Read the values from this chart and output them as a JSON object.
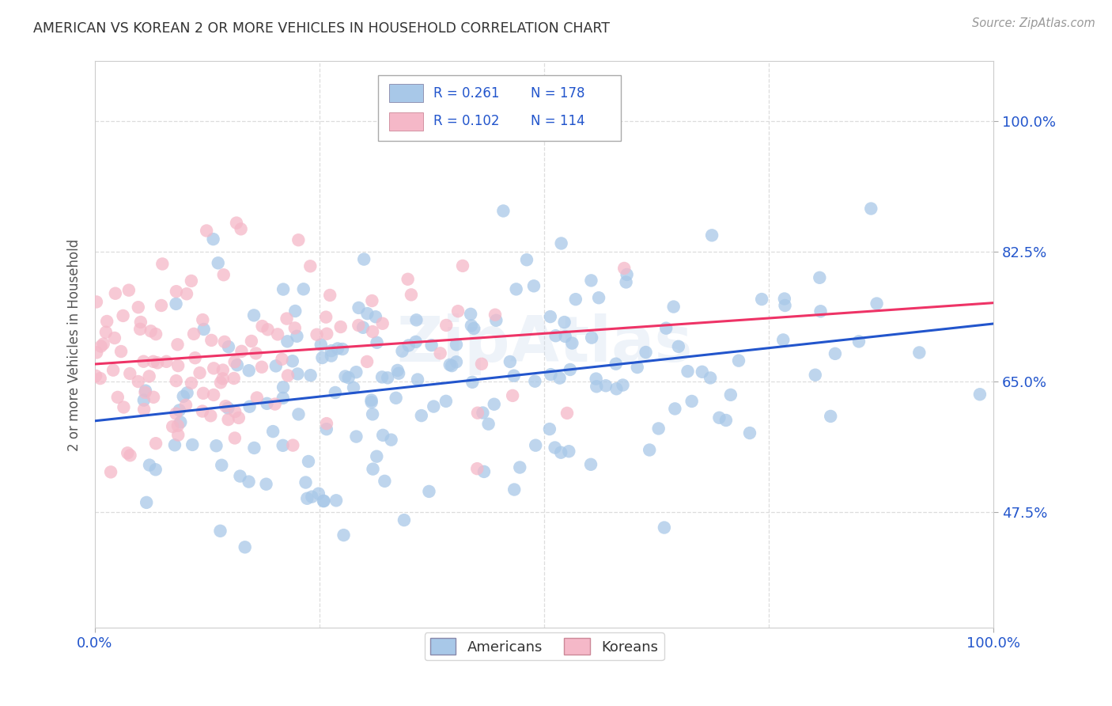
{
  "title": "AMERICAN VS KOREAN 2 OR MORE VEHICLES IN HOUSEHOLD CORRELATION CHART",
  "source": "Source: ZipAtlas.com",
  "ylabel": "2 or more Vehicles in Household",
  "xlim": [
    0.0,
    1.0
  ],
  "ylim": [
    0.32,
    1.08
  ],
  "yticks": [
    0.475,
    0.65,
    0.825,
    1.0
  ],
  "ytick_labels": [
    "47.5%",
    "65.0%",
    "82.5%",
    "100.0%"
  ],
  "xticks": [
    0.0,
    1.0
  ],
  "xtick_labels": [
    "0.0%",
    "100.0%"
  ],
  "americans_color": "#A8C8E8",
  "koreans_color": "#F5B8C8",
  "trendline_american_color": "#2255CC",
  "trendline_korean_color": "#EE3366",
  "r_american": 0.261,
  "n_american": 178,
  "r_korean": 0.102,
  "n_korean": 114,
  "legend_color": "#2255CC",
  "watermark": "ZipAtlas",
  "background_color": "#FFFFFF",
  "grid_color": "#DDDDDD",
  "title_color": "#333333",
  "source_color": "#999999",
  "ylabel_color": "#555555",
  "tick_color": "#2255CC"
}
